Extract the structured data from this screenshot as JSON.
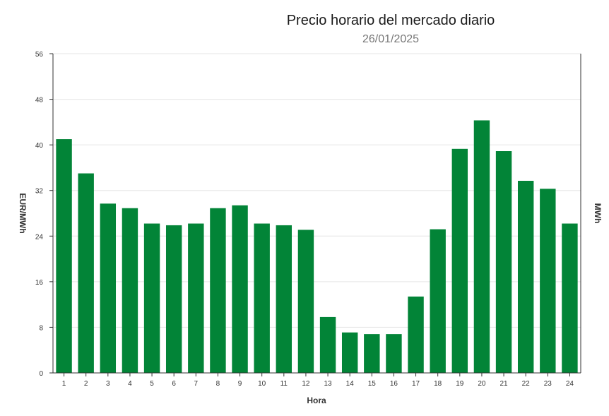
{
  "chart_data": {
    "type": "bar",
    "title": "Precio horario del mercado diario",
    "subtitle": "26/01/2025",
    "xlabel": "Hora",
    "ylabel": "EUR/MWh",
    "y2label": "MWh",
    "categories": [
      "1",
      "2",
      "3",
      "4",
      "5",
      "6",
      "7",
      "8",
      "9",
      "10",
      "11",
      "12",
      "13",
      "14",
      "15",
      "16",
      "17",
      "18",
      "19",
      "20",
      "21",
      "22",
      "23",
      "24"
    ],
    "values": [
      41.0,
      35.0,
      29.7,
      28.9,
      26.2,
      25.9,
      26.2,
      28.9,
      29.4,
      26.2,
      25.9,
      25.1,
      9.8,
      7.1,
      6.8,
      6.8,
      13.4,
      25.2,
      39.3,
      44.3,
      38.9,
      33.7,
      32.3,
      26.2
    ],
    "yticks": [
      0,
      8,
      16,
      24,
      32,
      40,
      48,
      56
    ],
    "ylim": [
      0,
      56
    ],
    "grid": true,
    "legend": "none",
    "bar_color": "#028437"
  }
}
